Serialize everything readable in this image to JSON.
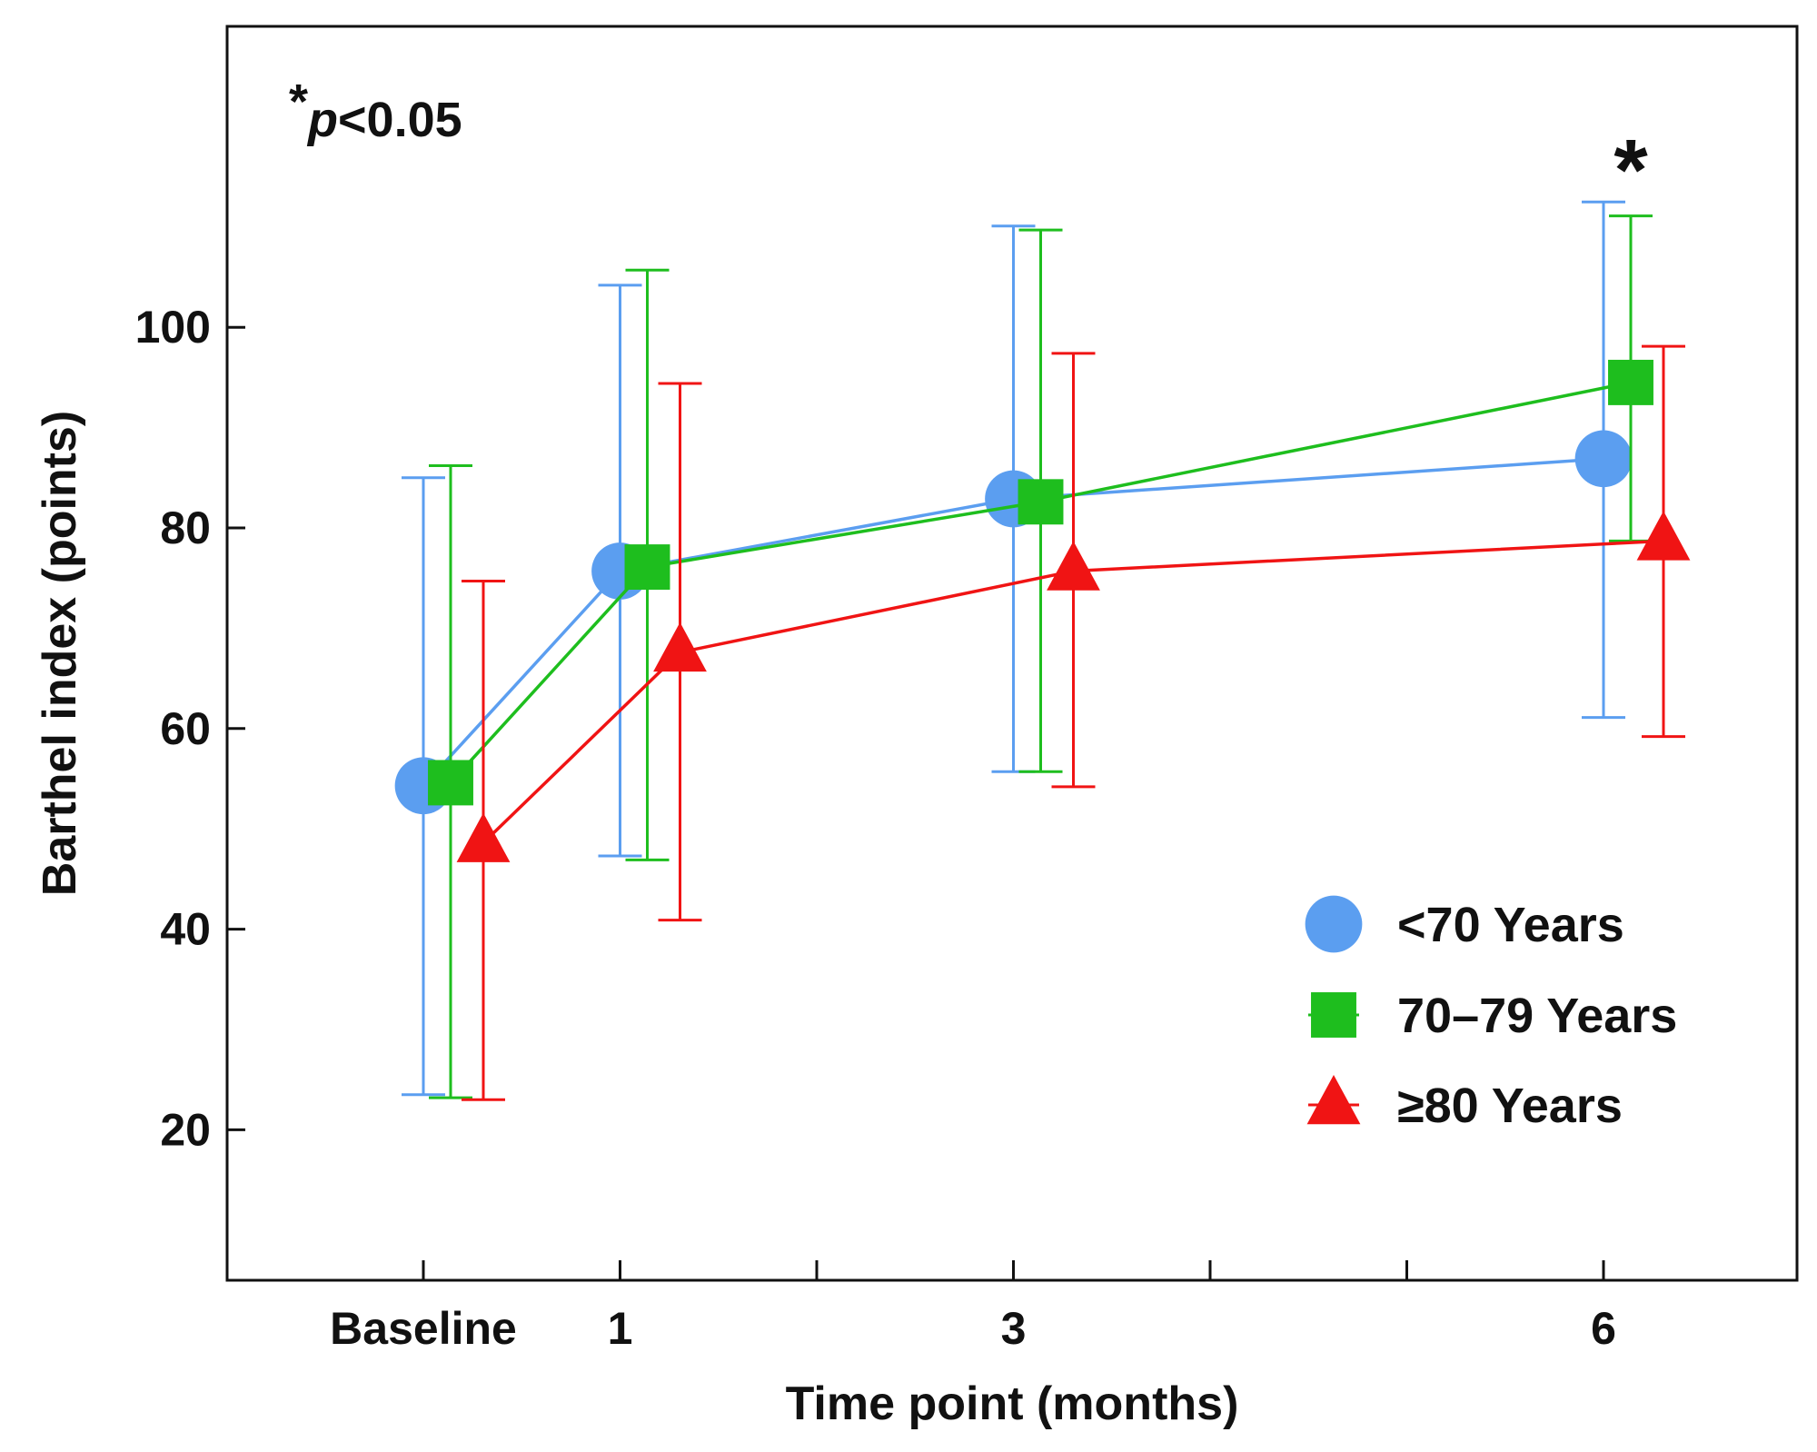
{
  "chart_data": {
    "type": "line",
    "title": "",
    "xlabel": "Time point (months)",
    "ylabel": "Barthel index (points)",
    "ylim": [
      5,
      130
    ],
    "xlim": [
      -1,
      7
    ],
    "x_ticks": [
      0,
      1,
      2,
      3,
      4,
      5,
      6
    ],
    "x_tick_labels": [
      {
        "x": 0,
        "label": "Baseline"
      },
      {
        "x": 1,
        "label": "1"
      },
      {
        "x": 3,
        "label": "3"
      },
      {
        "x": 6,
        "label": "6"
      }
    ],
    "y_ticks": [
      20,
      40,
      60,
      80,
      100
    ],
    "legend_position": "bottom-right",
    "annotation": {
      "star": "*",
      "italic": "p",
      "rest": "<0.05"
    },
    "significance_marker": {
      "x": 6,
      "label": "*"
    },
    "series": [
      {
        "name": "<70 Years",
        "color": "#5b9ef0",
        "marker": "circle",
        "x": [
          0,
          1,
          3,
          6
        ],
        "mean": [
          54.3,
          75.7,
          82.9,
          86.9
        ],
        "upper": [
          85,
          104.2,
          110.1,
          112.5
        ],
        "lower": [
          23.5,
          47.3,
          55.7,
          61.1
        ]
      },
      {
        "name": "70–79 Years",
        "color": "#1ebe1e",
        "marker": "square",
        "x": [
          0,
          1,
          3,
          6
        ],
        "mean": [
          54.6,
          76.1,
          82.6,
          94.5
        ],
        "upper": [
          86.2,
          105.7,
          109.7,
          111.1
        ],
        "lower": [
          23.2,
          46.9,
          55.7,
          78.7
        ]
      },
      {
        "name": "≥80 Years",
        "color": "#f01414",
        "marker": "triangle",
        "x": [
          0,
          1,
          3,
          6
        ],
        "mean": [
          48.6,
          67.6,
          75.7,
          78.7
        ],
        "upper": [
          74.7,
          94.4,
          97.4,
          98.1
        ],
        "lower": [
          23.0,
          40.9,
          54.2,
          59.2
        ]
      }
    ]
  }
}
